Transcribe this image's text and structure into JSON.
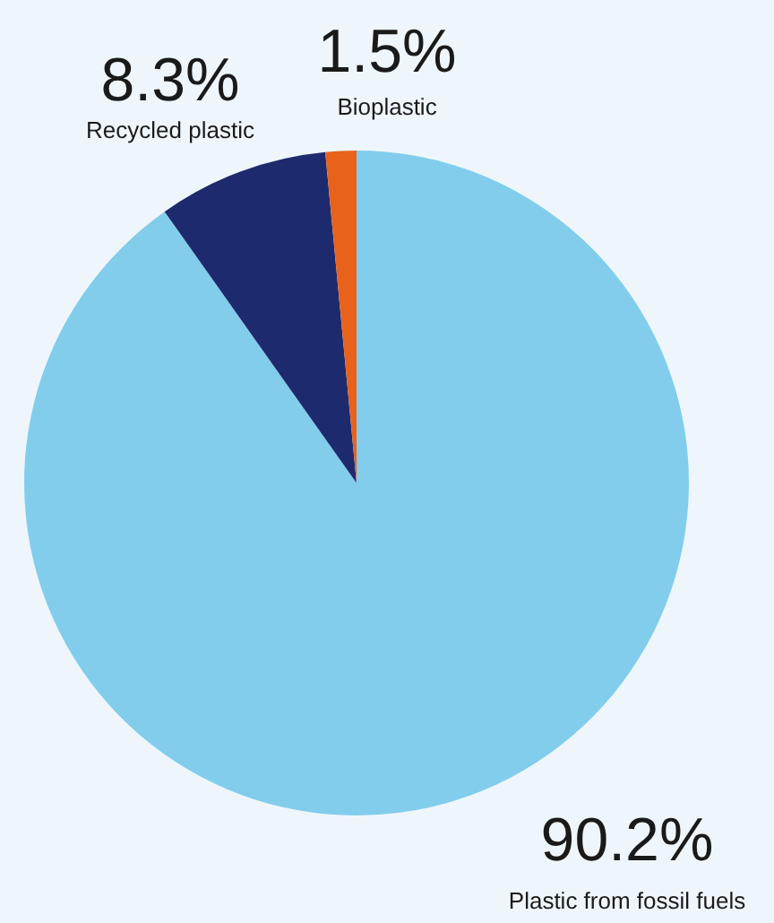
{
  "chart_data": {
    "type": "pie",
    "categories": [
      "Plastic from fossil fuels",
      "Recycled plastic",
      "Bioplastic"
    ],
    "values": [
      90.2,
      8.3,
      1.5
    ],
    "colors": [
      "#82cdec",
      "#1e2a6e",
      "#e8621c"
    ],
    "value_labels": [
      "90.2%",
      "8.3%",
      "1.5%"
    ]
  }
}
